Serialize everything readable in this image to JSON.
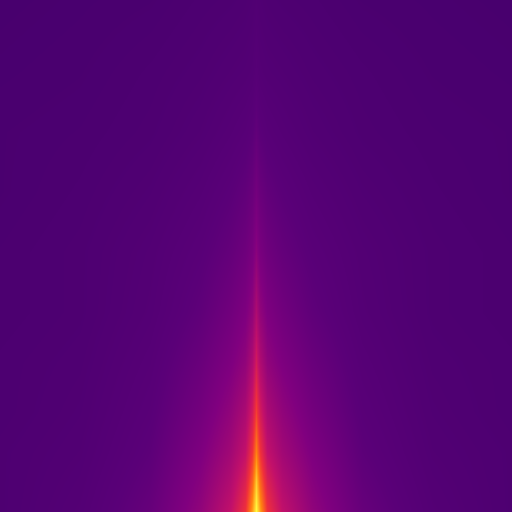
{
  "chart_data": {
    "type": "heatmap",
    "x": [
      0,
      80,
      150,
      200,
      230,
      245,
      252,
      256,
      260,
      267,
      282,
      312,
      362,
      432,
      512
    ],
    "y": [
      0,
      30,
      60,
      100,
      150,
      200,
      260,
      320,
      380,
      440,
      512
    ],
    "z": [
      [
        0.05,
        0.1,
        0.2,
        0.35,
        0.5,
        0.65,
        0.85,
        1.0,
        0.85,
        0.65,
        0.5,
        0.35,
        0.2,
        0.1,
        0.05
      ],
      [
        0.05,
        0.09,
        0.18,
        0.32,
        0.45,
        0.58,
        0.75,
        0.92,
        0.75,
        0.58,
        0.45,
        0.32,
        0.18,
        0.09,
        0.05
      ],
      [
        0.05,
        0.08,
        0.16,
        0.29,
        0.4,
        0.5,
        0.65,
        0.8,
        0.65,
        0.5,
        0.4,
        0.29,
        0.16,
        0.08,
        0.05
      ],
      [
        0.04,
        0.07,
        0.14,
        0.25,
        0.35,
        0.43,
        0.55,
        0.68,
        0.55,
        0.43,
        0.35,
        0.25,
        0.14,
        0.07,
        0.04
      ],
      [
        0.04,
        0.06,
        0.12,
        0.21,
        0.29,
        0.35,
        0.44,
        0.55,
        0.44,
        0.35,
        0.29,
        0.21,
        0.12,
        0.06,
        0.04
      ],
      [
        0.03,
        0.05,
        0.1,
        0.17,
        0.24,
        0.29,
        0.35,
        0.44,
        0.35,
        0.29,
        0.24,
        0.17,
        0.1,
        0.05,
        0.03
      ],
      [
        0.03,
        0.05,
        0.09,
        0.14,
        0.19,
        0.23,
        0.27,
        0.33,
        0.27,
        0.23,
        0.19,
        0.14,
        0.09,
        0.05,
        0.03
      ],
      [
        0.02,
        0.04,
        0.07,
        0.11,
        0.15,
        0.18,
        0.21,
        0.25,
        0.21,
        0.18,
        0.15,
        0.11,
        0.07,
        0.04,
        0.02
      ],
      [
        0.02,
        0.03,
        0.05,
        0.08,
        0.11,
        0.13,
        0.15,
        0.18,
        0.15,
        0.13,
        0.11,
        0.08,
        0.05,
        0.03,
        0.02
      ],
      [
        0.01,
        0.02,
        0.04,
        0.06,
        0.08,
        0.09,
        0.1,
        0.12,
        0.1,
        0.09,
        0.08,
        0.06,
        0.04,
        0.02,
        0.01
      ],
      [
        0,
        0.01,
        0.02,
        0.04,
        0.05,
        0.06,
        0.07,
        0.08,
        0.07,
        0.06,
        0.05,
        0.04,
        0.02,
        0.01,
        0
      ]
    ],
    "xlim": [
      0,
      512
    ],
    "ylim": [
      0,
      512
    ],
    "zlim": [
      0,
      1
    ],
    "tick_labels": false,
    "grid": false
  }
}
